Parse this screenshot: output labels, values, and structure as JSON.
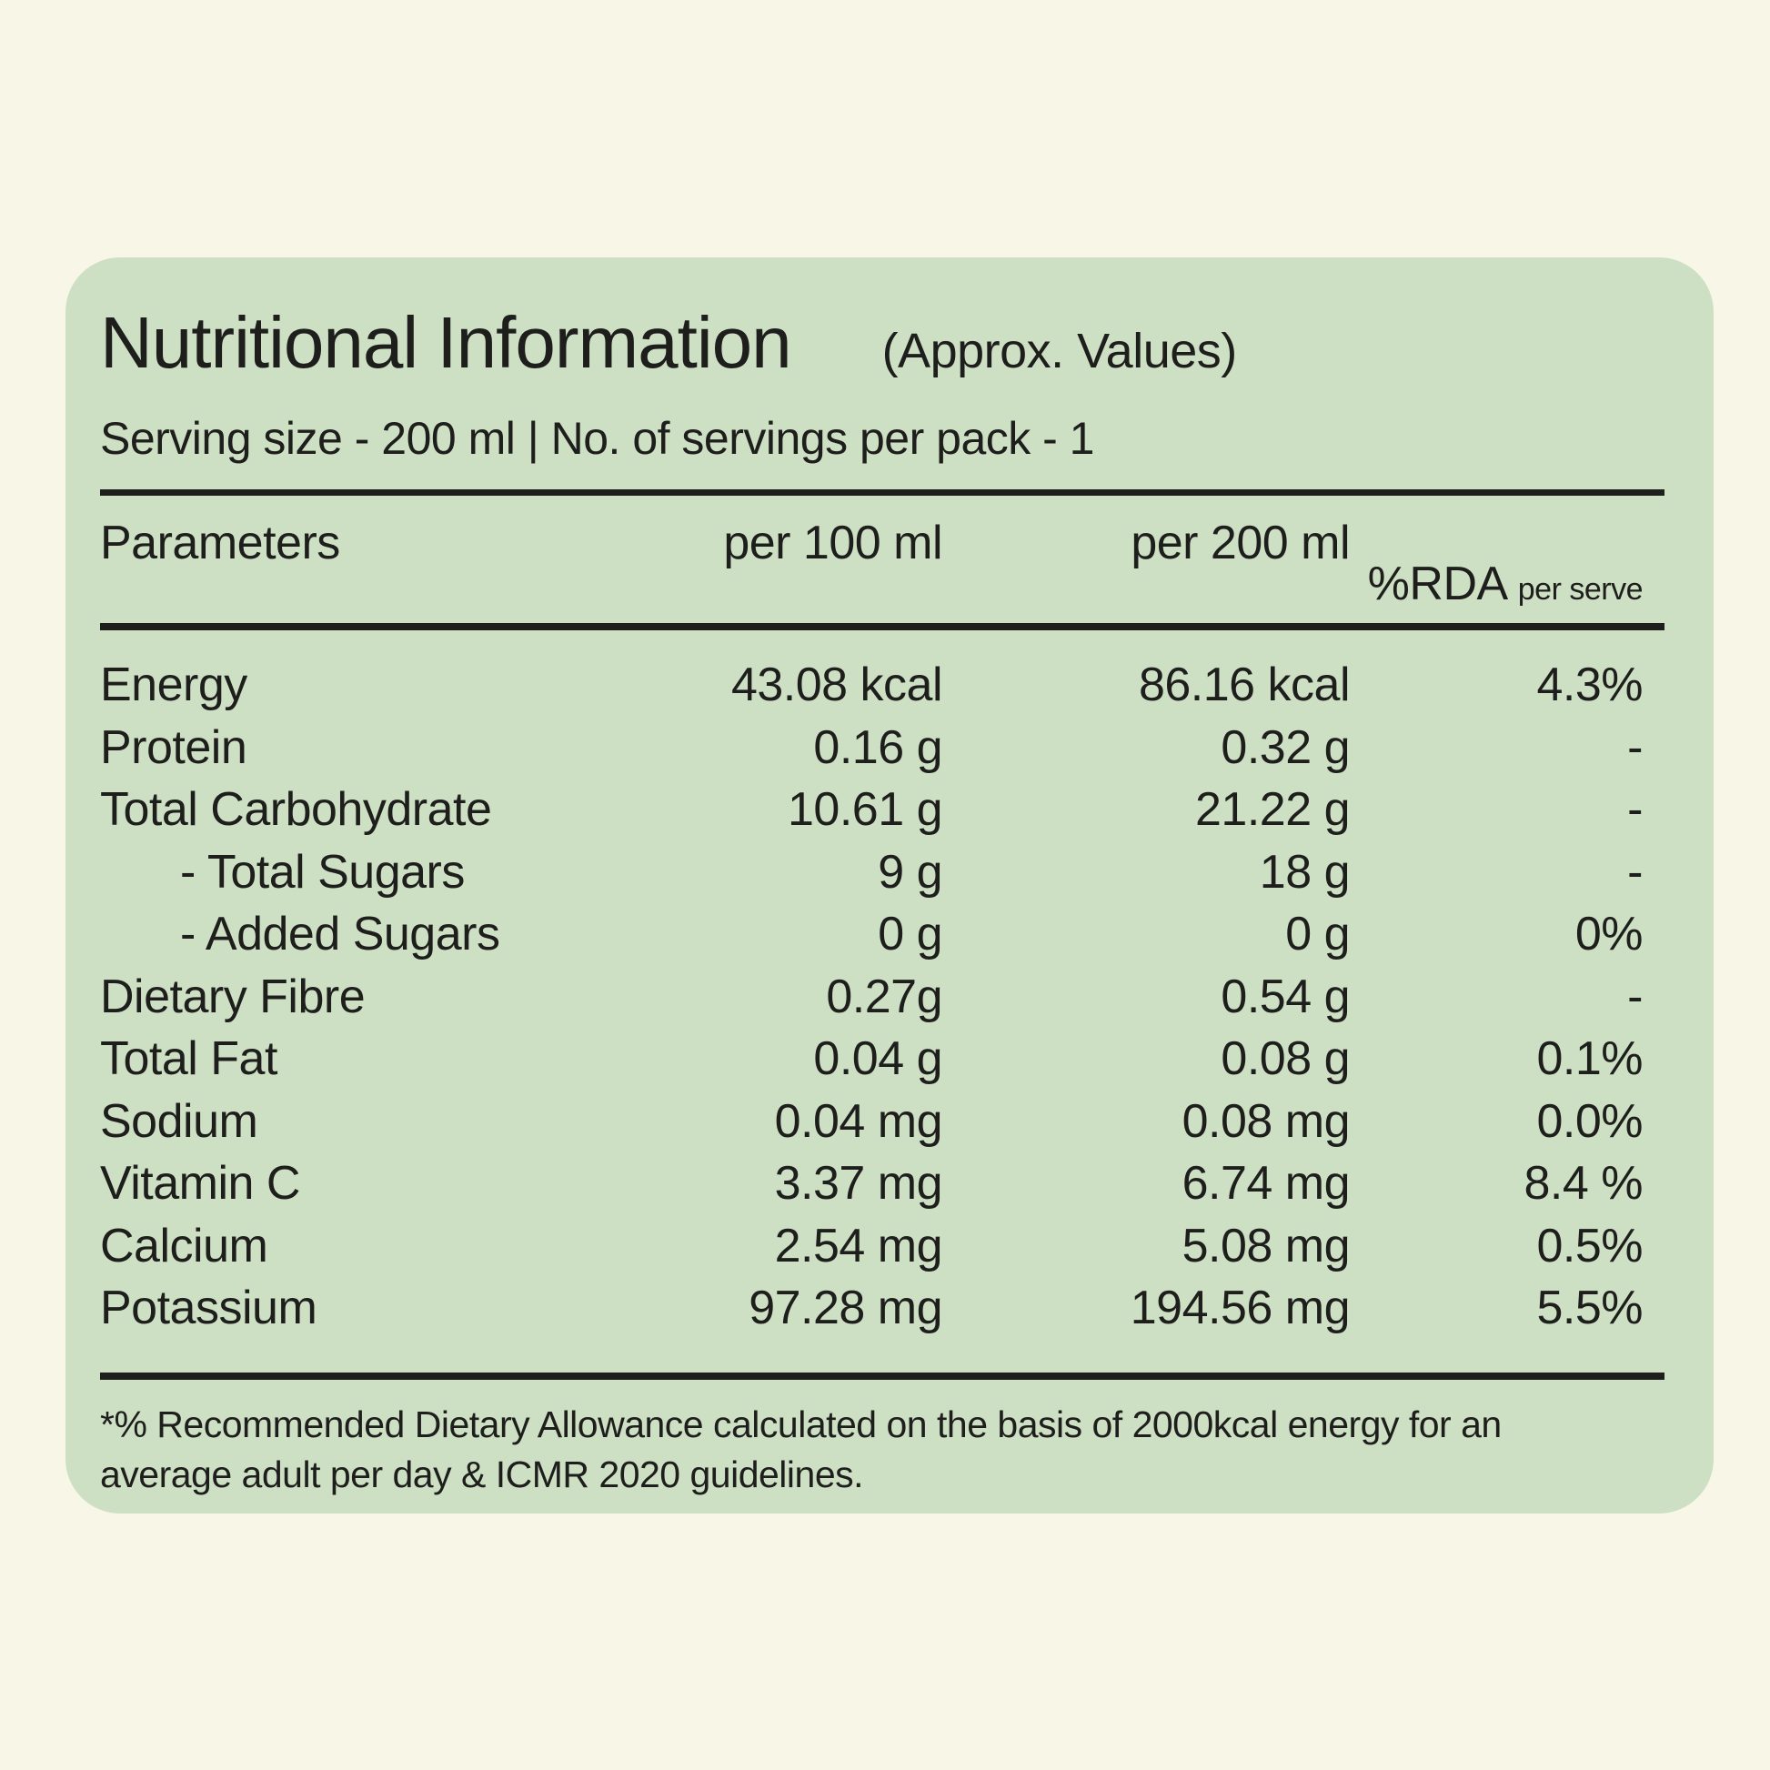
{
  "colors": {
    "background": "#f8f6e7",
    "panel": "#cde0c4",
    "text": "#1e1e1c"
  },
  "panel": {
    "title": "Nutritional Information",
    "title_suffix": "(Approx. Values)",
    "serving_info": "Serving size - 200 ml | No. of servings per pack - 1",
    "table": {
      "headers": {
        "parameters": "Parameters",
        "per_100": "per 100 ml",
        "per_200": "per 200 ml",
        "rda": "%RDA",
        "rda_sub": "per serve"
      },
      "rows": [
        {
          "label": "Energy",
          "indent": false,
          "per_100": "43.08 kcal",
          "per_200": "86.16 kcal",
          "rda": "4.3%"
        },
        {
          "label": "Protein",
          "indent": false,
          "per_100": "0.16 g",
          "per_200": "0.32 g",
          "rda": "-"
        },
        {
          "label": "Total Carbohydrate",
          "indent": false,
          "per_100": "10.61 g",
          "per_200": "21.22 g",
          "rda": "-"
        },
        {
          "label": "- Total Sugars",
          "indent": true,
          "per_100": "9 g",
          "per_200": "18 g",
          "rda": "-"
        },
        {
          "label": "- Added Sugars",
          "indent": true,
          "per_100": "0 g",
          "per_200": "0 g",
          "rda": "0%"
        },
        {
          "label": "Dietary Fibre",
          "indent": false,
          "per_100": "0.27g",
          "per_200": "0.54 g",
          "rda": "-"
        },
        {
          "label": "Total Fat",
          "indent": false,
          "per_100": "0.04 g",
          "per_200": "0.08 g",
          "rda": "0.1%"
        },
        {
          "label": "Sodium",
          "indent": false,
          "per_100": "0.04 mg",
          "per_200": "0.08 mg",
          "rda": "0.0%"
        },
        {
          "label": "Vitamin C",
          "indent": false,
          "per_100": "3.37 mg",
          "per_200": "6.74 mg",
          "rda": "8.4 %"
        },
        {
          "label": "Calcium",
          "indent": false,
          "per_100": "2.54 mg",
          "per_200": "5.08 mg",
          "rda": "0.5%"
        },
        {
          "label": "Potassium",
          "indent": false,
          "per_100": "97.28 mg",
          "per_200": "194.56 mg",
          "rda": "5.5%"
        }
      ]
    },
    "footnote_line1": "*% Recommended Dietary Allowance calculated on the basis of 2000kcal energy for an",
    "footnote_line2": "average adult per day & ICMR 2020 guidelines."
  }
}
